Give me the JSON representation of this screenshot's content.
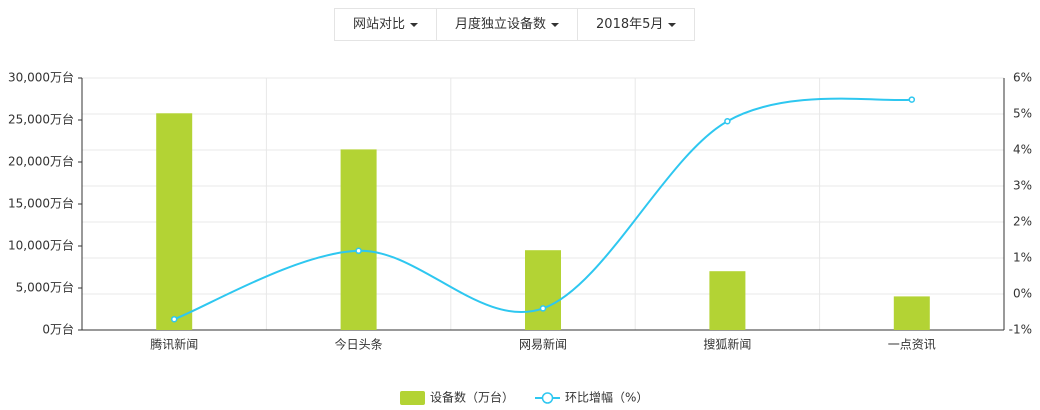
{
  "controls": [
    "网站对比",
    "月度独立设备数",
    "2018年5月"
  ],
  "chart_data": {
    "type": "bar-line",
    "categories": [
      "腾讯新闻",
      "今日头条",
      "网易新闻",
      "搜狐新闻",
      "一点资讯"
    ],
    "series": [
      {
        "name": "设备数（万台）",
        "type": "bar",
        "color": "#b3d334",
        "values": [
          25800,
          21500,
          9500,
          7000,
          4000
        ]
      },
      {
        "name": "环比增幅（%）",
        "type": "line",
        "axis": "y2",
        "color": "#2ec7f0",
        "values": [
          -0.7,
          1.2,
          -0.4,
          4.8,
          5.4
        ]
      }
    ],
    "ylim": [
      0,
      30000
    ],
    "yticks": [
      {
        "value": 0,
        "label": "0万台"
      },
      {
        "value": 5000,
        "label": "5,000万台"
      },
      {
        "value": 10000,
        "label": "10,000万台"
      },
      {
        "value": 15000,
        "label": "15,000万台"
      },
      {
        "value": 20000,
        "label": "20,000万台"
      },
      {
        "value": 25000,
        "label": "25,000万台"
      },
      {
        "value": 30000,
        "label": "30,000万台"
      }
    ],
    "y2lim": [
      -1,
      6
    ],
    "y2ticks": [
      {
        "value": -1,
        "label": "-1%"
      },
      {
        "value": 0,
        "label": "0%"
      },
      {
        "value": 1,
        "label": "1%"
      },
      {
        "value": 2,
        "label": "2%"
      },
      {
        "value": 3,
        "label": "3%"
      },
      {
        "value": 4,
        "label": "4%"
      },
      {
        "value": 5,
        "label": "5%"
      },
      {
        "value": 6,
        "label": "6%"
      }
    ],
    "grid": true
  }
}
